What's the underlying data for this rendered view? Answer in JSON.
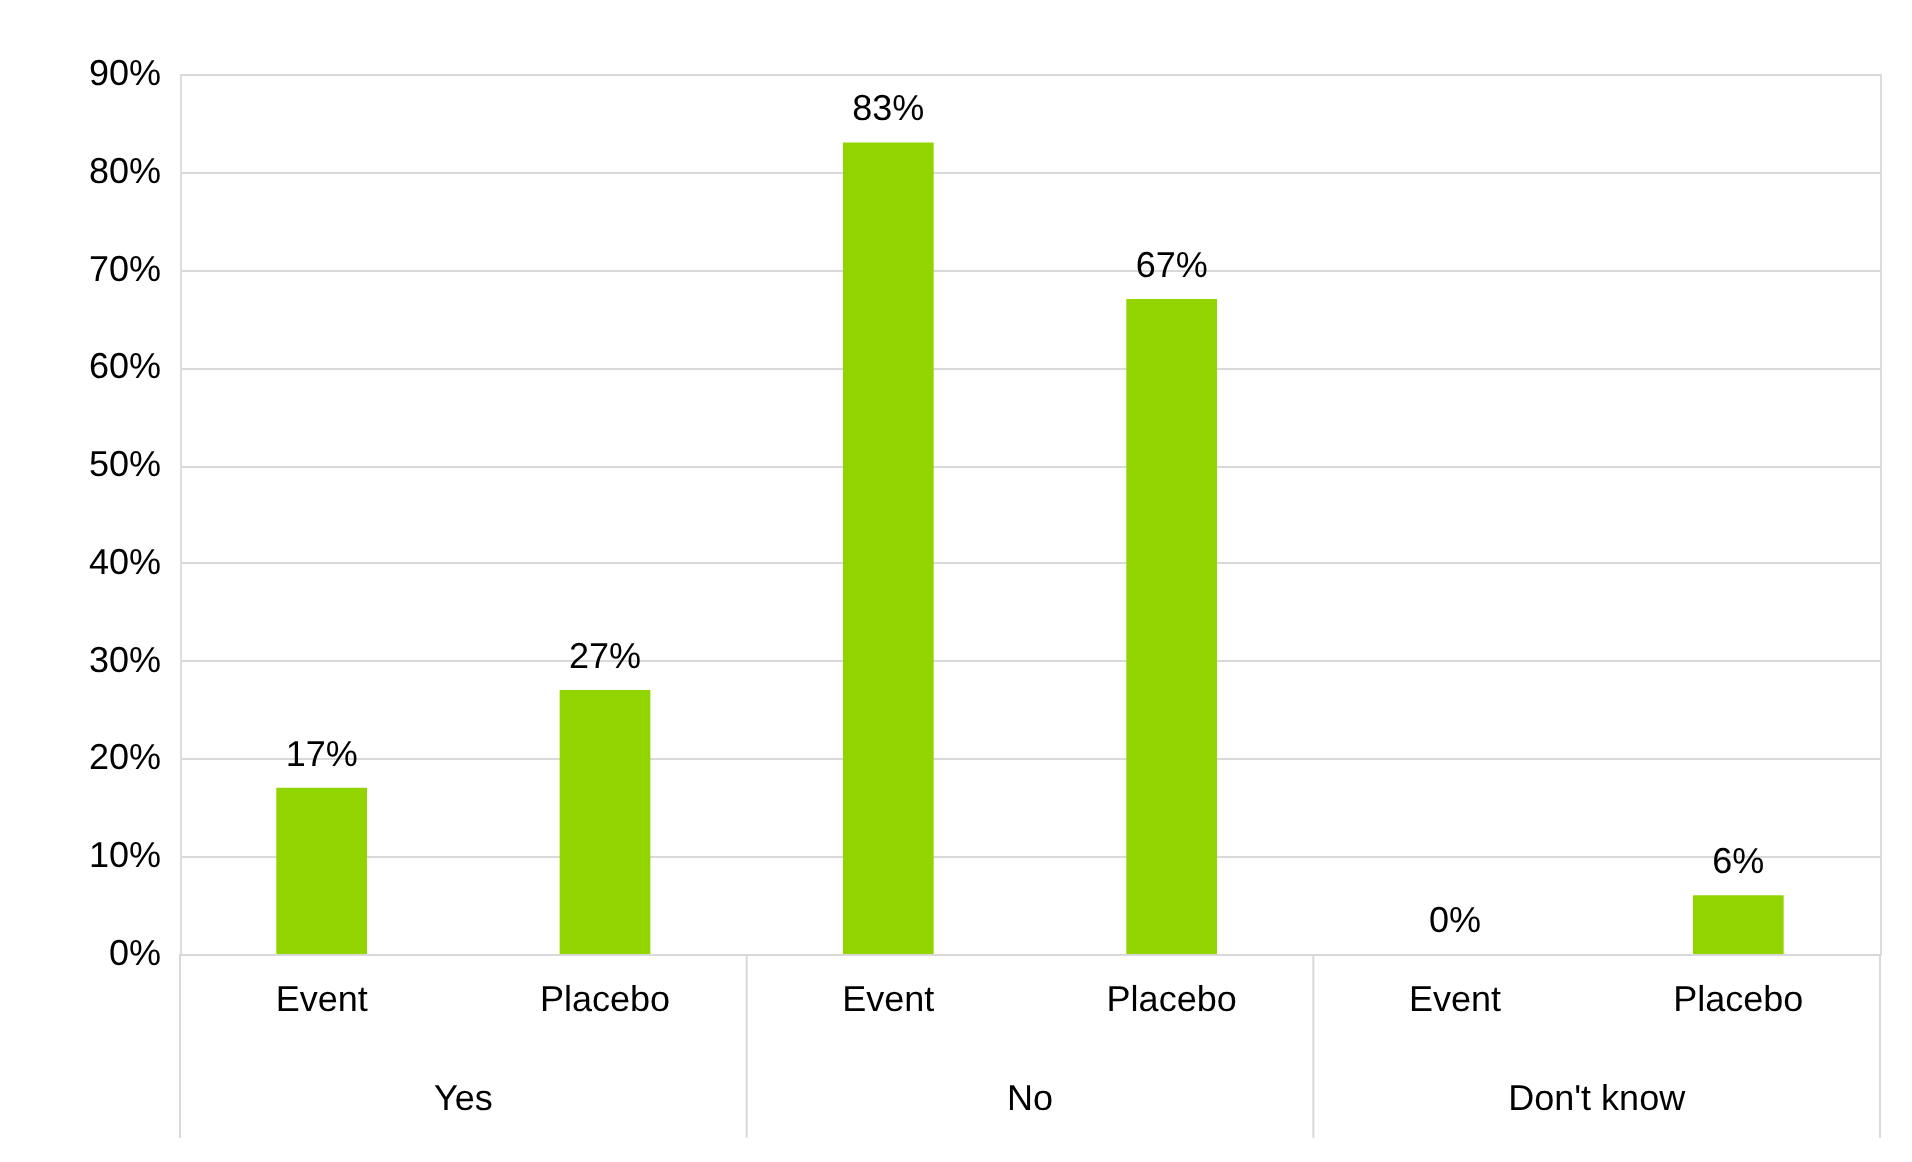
{
  "chart_data": {
    "type": "bar",
    "categories": [
      "Event",
      "Placebo",
      "Event",
      "Placebo",
      "Event",
      "Placebo"
    ],
    "values": [
      17,
      27,
      83,
      67,
      0,
      6
    ],
    "color": "#92d400",
    "value_labels": [
      "17%",
      "27%",
      "83%",
      "67%",
      "0%",
      "6%"
    ],
    "annotations": [
      "Yes",
      "No",
      "Don't know"
    ],
    "ylim": [
      0,
      90
    ],
    "yticks": [
      {
        "value": 0,
        "label": "0%"
      },
      {
        "value": 10,
        "label": "10%"
      },
      {
        "value": 20,
        "label": "20%"
      },
      {
        "value": 30,
        "label": "30%"
      },
      {
        "value": 40,
        "label": "40%"
      },
      {
        "value": 50,
        "label": "50%"
      },
      {
        "value": 60,
        "label": "60%"
      },
      {
        "value": 70,
        "label": "70%"
      },
      {
        "value": 80,
        "label": "80%"
      },
      {
        "value": 90,
        "label": "90%"
      }
    ],
    "grid": "y"
  }
}
